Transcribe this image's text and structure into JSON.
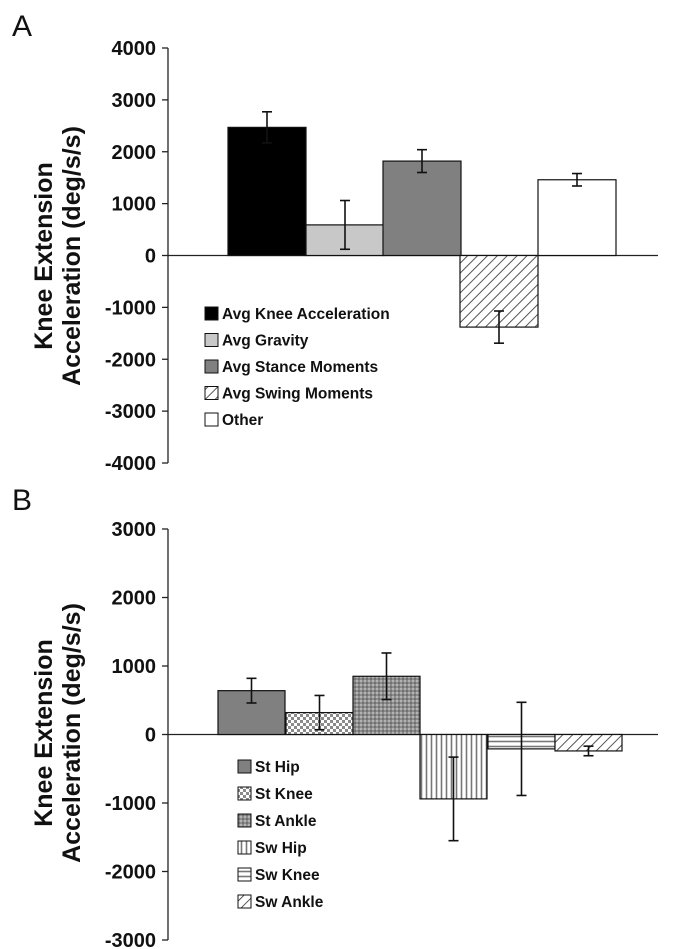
{
  "chart_data": [
    {
      "panel": "A",
      "type": "bar",
      "ylabel": [
        "Knee Extension",
        "Acceleration (deg/s/s)"
      ],
      "ylim": [
        -4000,
        4000
      ],
      "yticks": [
        4000,
        3000,
        2000,
        1000,
        0,
        -1000,
        -2000,
        -3000,
        -4000
      ],
      "grid": false,
      "legend_position": "bottom-left",
      "series": [
        {
          "name": "Avg Knee Acceleration",
          "value": 2470,
          "error": 300,
          "fill": "solid-black"
        },
        {
          "name": "Avg Gravity",
          "value": 590,
          "error": 470,
          "fill": "solid-lightgray"
        },
        {
          "name": "Avg Stance Moments",
          "value": 1820,
          "error": 220,
          "fill": "solid-gray"
        },
        {
          "name": "Avg Swing Moments",
          "value": -1380,
          "error": 310,
          "fill": "diagonal-hatch"
        },
        {
          "name": "Other",
          "value": 1460,
          "error": 120,
          "fill": "solid-white"
        }
      ]
    },
    {
      "panel": "B",
      "type": "bar",
      "ylabel": [
        "Knee Extension",
        "Acceleration (deg/s/s)"
      ],
      "ylim": [
        -3000,
        3000
      ],
      "yticks": [
        3000,
        2000,
        1000,
        0,
        -1000,
        -2000,
        -3000
      ],
      "grid": false,
      "legend_position": "bottom-left",
      "series": [
        {
          "name": "St Hip",
          "value": 640,
          "error": 180,
          "fill": "solid-gray"
        },
        {
          "name": "St Knee",
          "value": 320,
          "error": 250,
          "fill": "checker"
        },
        {
          "name": "St Ankle",
          "value": 850,
          "error": 340,
          "fill": "dotted-gray"
        },
        {
          "name": "Sw Hip",
          "value": -940,
          "error": 610,
          "fill": "vertical-lines"
        },
        {
          "name": "Sw Knee",
          "value": -210,
          "error": 680,
          "fill": "horizontal-lines"
        },
        {
          "name": "Sw Ankle",
          "value": -240,
          "error": 70,
          "fill": "diagonal-hatch"
        }
      ]
    }
  ],
  "colors": {
    "black": "#000000",
    "light_gray": "#c8c8c8",
    "mid_gray": "#808080",
    "axis": "#222222"
  }
}
